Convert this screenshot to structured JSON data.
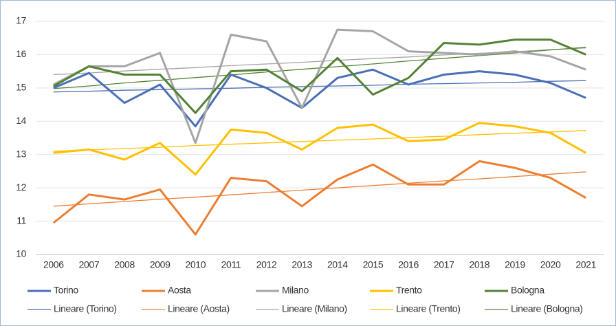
{
  "chart_data": {
    "type": "line",
    "categories": [
      "2006",
      "2007",
      "2008",
      "2009",
      "2010",
      "2011",
      "2012",
      "2013",
      "2014",
      "2015",
      "2016",
      "2017",
      "2018",
      "2019",
      "2020",
      "2021"
    ],
    "ylim": [
      10,
      17
    ],
    "yticks": [
      10,
      11,
      12,
      13,
      14,
      15,
      16,
      17
    ],
    "grid": true,
    "legend": "bottom",
    "series": [
      {
        "name": "Torino",
        "color": "#4a6fb5",
        "line_width": 3,
        "values": [
          15.0,
          15.45,
          14.55,
          15.1,
          13.85,
          15.4,
          15.0,
          14.4,
          15.3,
          15.55,
          15.1,
          15.4,
          15.5,
          15.4,
          15.15,
          14.7
        ]
      },
      {
        "name": "Aosta",
        "color": "#ed7d31",
        "line_width": 3,
        "values": [
          10.95,
          11.8,
          11.65,
          11.95,
          10.6,
          12.3,
          12.2,
          11.45,
          12.25,
          12.7,
          12.1,
          12.1,
          12.8,
          12.6,
          12.3,
          11.7
        ]
      },
      {
        "name": "Milano",
        "color": "#a5a5a5",
        "line_width": 3,
        "values": [
          15.1,
          15.65,
          15.65,
          16.05,
          13.35,
          16.6,
          16.4,
          14.4,
          16.75,
          16.7,
          16.1,
          16.05,
          16.0,
          16.1,
          15.95,
          15.55
        ]
      },
      {
        "name": "Trento",
        "color": "#ffc000",
        "line_width": 3,
        "values": [
          13.05,
          13.15,
          12.85,
          13.35,
          12.4,
          13.75,
          13.65,
          13.15,
          13.8,
          13.9,
          13.4,
          13.45,
          13.95,
          13.85,
          13.65,
          13.05
        ]
      },
      {
        "name": "Bologna",
        "color": "#548235",
        "line_width": 3,
        "values": [
          15.05,
          15.65,
          15.4,
          15.4,
          14.25,
          15.5,
          15.55,
          14.9,
          15.9,
          14.8,
          15.3,
          16.35,
          16.3,
          16.45,
          16.45,
          16.0
        ]
      },
      {
        "name": "Lineare (Torino)",
        "color": "#4a6fb5",
        "line_width": 1.3,
        "values": [
          14.88,
          14.9,
          14.93,
          14.95,
          14.97,
          14.99,
          15.02,
          15.04,
          15.06,
          15.08,
          15.11,
          15.13,
          15.15,
          15.17,
          15.2,
          15.22
        ]
      },
      {
        "name": "Lineare (Aosta)",
        "color": "#ed7d31",
        "line_width": 1.3,
        "values": [
          11.45,
          11.52,
          11.59,
          11.66,
          11.72,
          11.79,
          11.86,
          11.93,
          12.0,
          12.07,
          12.14,
          12.21,
          12.27,
          12.34,
          12.41,
          12.48
        ]
      },
      {
        "name": "Lineare (Milano)",
        "color": "#a5a5a5",
        "line_width": 1.3,
        "values": [
          15.4,
          15.45,
          15.51,
          15.56,
          15.61,
          15.67,
          15.72,
          15.77,
          15.83,
          15.88,
          15.93,
          15.99,
          16.04,
          16.09,
          16.15,
          16.2
        ]
      },
      {
        "name": "Lineare (Trento)",
        "color": "#ffc000",
        "line_width": 1.3,
        "values": [
          13.1,
          13.14,
          13.18,
          13.22,
          13.27,
          13.31,
          13.35,
          13.39,
          13.43,
          13.47,
          13.51,
          13.55,
          13.6,
          13.64,
          13.68,
          13.72
        ]
      },
      {
        "name": "Lineare (Bologna)",
        "color": "#548235",
        "line_width": 1.3,
        "values": [
          14.98,
          15.06,
          15.15,
          15.23,
          15.31,
          15.39,
          15.48,
          15.56,
          15.64,
          15.72,
          15.81,
          15.89,
          15.97,
          16.05,
          16.14,
          16.22
        ]
      }
    ]
  }
}
